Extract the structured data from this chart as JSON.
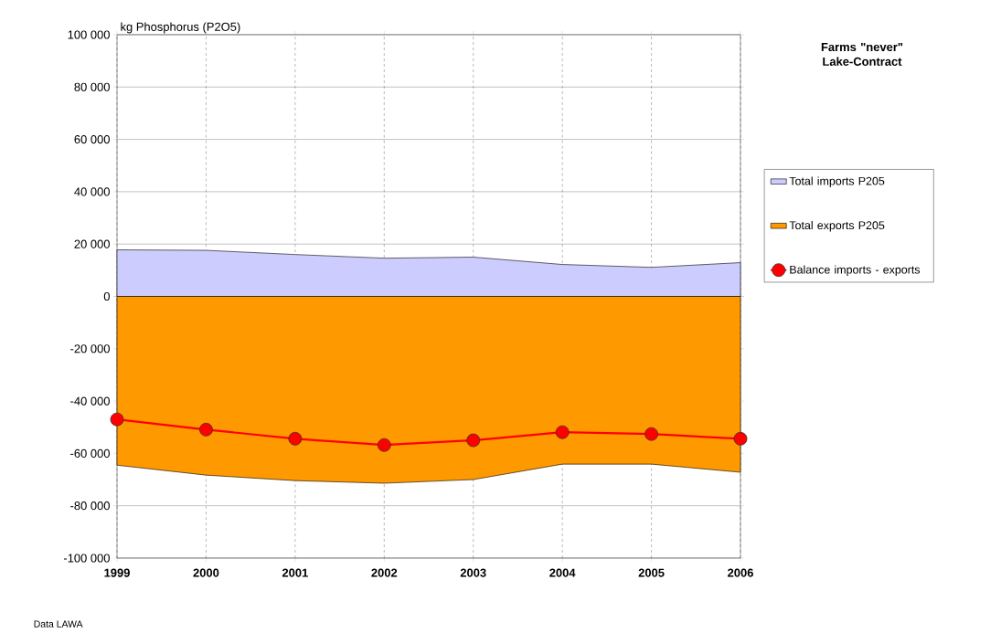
{
  "chart_data": {
    "type": "area",
    "title": "Farms \"never\" Lake-Contract",
    "ylabel": "kg Phosphorus (P2O5)",
    "annotations": [
      "Data LAWA"
    ],
    "categories": [
      "1999",
      "2000",
      "2001",
      "2002",
      "2003",
      "2004",
      "2005",
      "2006"
    ],
    "series": [
      {
        "name": "Total imports P205",
        "color": "#ccccff",
        "values": [
          17800,
          17600,
          16000,
          14600,
          15000,
          12200,
          11100,
          12900
        ]
      },
      {
        "name": "Total exports P205",
        "color": "#ff9900",
        "values": [
          -64500,
          -68300,
          -70400,
          -71400,
          -70000,
          -64100,
          -64100,
          -67200
        ]
      },
      {
        "name": "Balance imports - exports",
        "type": "line",
        "color": "#ff0000",
        "marker": "circle",
        "values": [
          -47000,
          -50900,
          -54400,
          -56800,
          -55000,
          -51900,
          -52600,
          -54400
        ]
      }
    ],
    "ylim": [
      -100000,
      100000
    ],
    "yticks": [
      {
        "value": -100000,
        "label": "-100 000"
      },
      {
        "value": -80000,
        "label": "-80 000"
      },
      {
        "value": -60000,
        "label": "-60 000"
      },
      {
        "value": -40000,
        "label": "-40 000"
      },
      {
        "value": -20000,
        "label": "-20 000"
      },
      0,
      {
        "value": 20000,
        "label": "20 000"
      },
      {
        "value": 40000,
        "label": "40 000"
      },
      {
        "value": 60000,
        "label": "60 000"
      },
      {
        "value": 80000,
        "label": "80 000"
      },
      {
        "value": 100000,
        "label": "100 000"
      }
    ],
    "grid": true,
    "legend": "right"
  }
}
